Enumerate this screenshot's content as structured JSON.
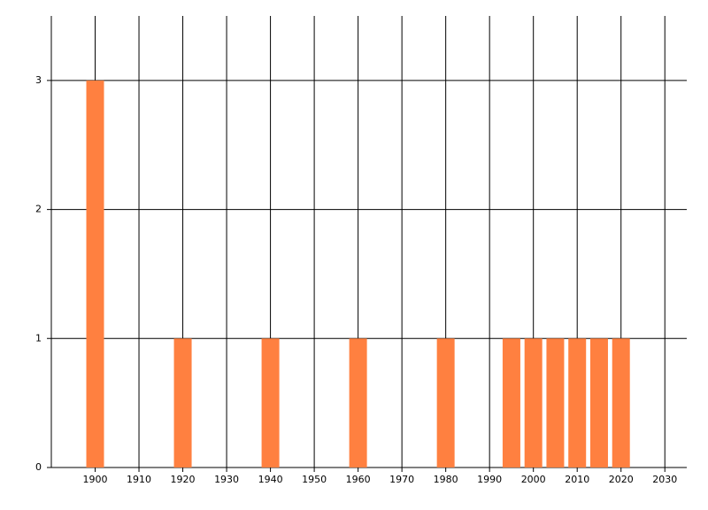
{
  "chart_data": {
    "type": "bar",
    "x": [
      1900,
      1920,
      1940,
      1960,
      1980,
      1995,
      2000,
      2005,
      2010,
      2015,
      2020
    ],
    "values": [
      3,
      1,
      1,
      1,
      1,
      1,
      1,
      1,
      1,
      1,
      1
    ],
    "color": "#ff8040",
    "xlim": [
      1890,
      2035
    ],
    "xticks": [
      1900,
      1910,
      1920,
      1930,
      1940,
      1950,
      1960,
      1970,
      1980,
      1990,
      2000,
      2010,
      2020,
      2030
    ],
    "ylim": [
      0,
      3.5
    ],
    "yticks": [
      0,
      1,
      2,
      3
    ],
    "grid": true
  }
}
